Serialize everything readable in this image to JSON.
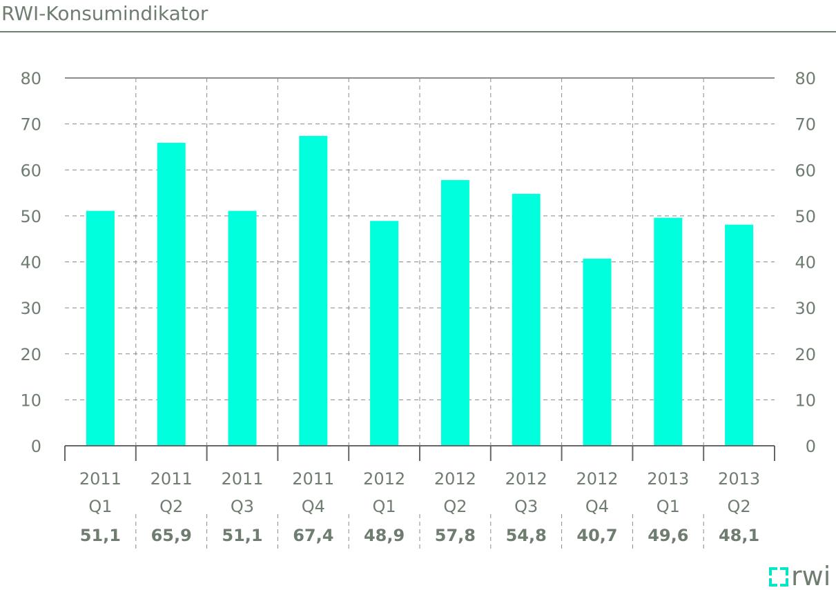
{
  "chart_data": {
    "type": "bar",
    "title": "RWI-Konsumindikator",
    "categories": [
      {
        "year": "2011",
        "quarter": "Q1"
      },
      {
        "year": "2011",
        "quarter": "Q2"
      },
      {
        "year": "2011",
        "quarter": "Q3"
      },
      {
        "year": "2011",
        "quarter": "Q4"
      },
      {
        "year": "2012",
        "quarter": "Q1"
      },
      {
        "year": "2012",
        "quarter": "Q2"
      },
      {
        "year": "2012",
        "quarter": "Q3"
      },
      {
        "year": "2012",
        "quarter": "Q4"
      },
      {
        "year": "2013",
        "quarter": "Q1"
      },
      {
        "year": "2013",
        "quarter": "Q2"
      }
    ],
    "values": [
      51.1,
      65.9,
      51.1,
      67.4,
      48.9,
      57.8,
      54.8,
      40.7,
      49.6,
      48.1
    ],
    "value_labels": [
      "51,1",
      "65,9",
      "51,1",
      "67,4",
      "48,9",
      "57,8",
      "54,8",
      "40,7",
      "49,6",
      "48,1"
    ],
    "ylim": [
      0,
      80
    ],
    "yticks": [
      "0",
      "10",
      "20",
      "30",
      "40",
      "50",
      "60",
      "70",
      "80"
    ],
    "yaxis_both_sides": true,
    "grid": true,
    "bar_color": "#00ffdd",
    "text_color": "#6f7d70",
    "grid_color": "#888888"
  },
  "logo": {
    "text": "rwi",
    "name": "rwi-logo"
  }
}
